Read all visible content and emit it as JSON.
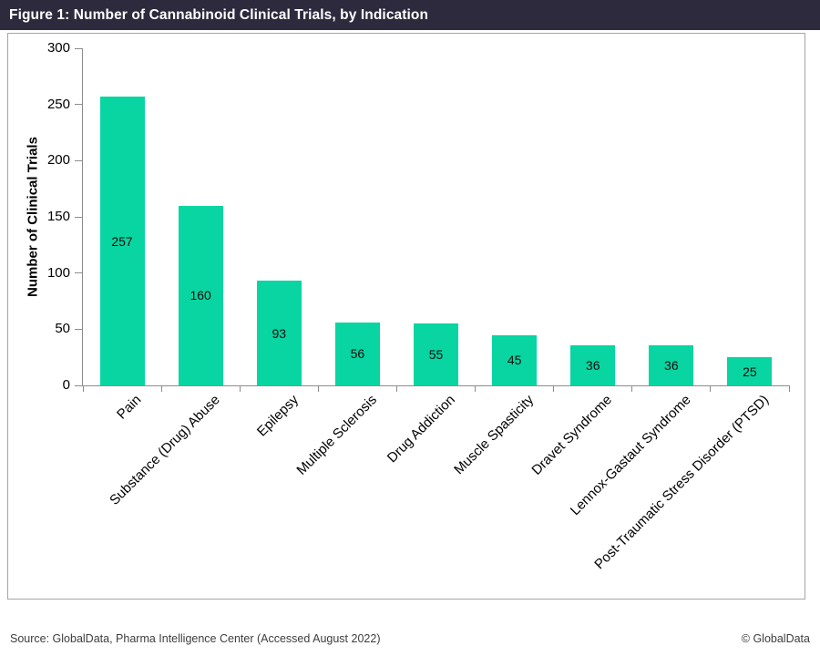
{
  "header": {
    "title": "Figure 1: Number of Cannabinoid Clinical Trials, by Indication"
  },
  "chart_data": {
    "type": "bar",
    "title": "Figure 1: Number of Cannabinoid Clinical Trials, by Indication",
    "categories": [
      "Pain",
      "Substance (Drug) Abuse",
      "Epilepsy",
      "Multiple Sclerosis",
      "Drug Addiction",
      "Muscle Spasticity",
      "Dravet Syndrome",
      "Lennox-Gastaut Syndrome",
      "Post-Traumatic Stress Disorder (PTSD)"
    ],
    "values": [
      257,
      160,
      93,
      56,
      55,
      45,
      36,
      36,
      25
    ],
    "xlabel": "",
    "ylabel": "Number of Clinical Trials",
    "ylim": [
      0,
      300
    ],
    "yticks": [
      0,
      50,
      100,
      150,
      200,
      250,
      300
    ],
    "grid": false,
    "legend": false,
    "value_label_position": "inside-center",
    "xtick_label_rotation_deg": -45
  },
  "footer": {
    "source": "Source: GlobalData, Pharma Intelligence Center (Accessed August 2022)",
    "copyright": "© GlobalData"
  },
  "colors": {
    "header_bg": "#2D2A3E",
    "header_text": "#FFFFFF",
    "bar": "#08D5A1",
    "axis": "#8C8C8C",
    "frame_border": "#A6A6A6",
    "value_text": "#0B0B0B",
    "footer_text": "#3D3D3D"
  }
}
